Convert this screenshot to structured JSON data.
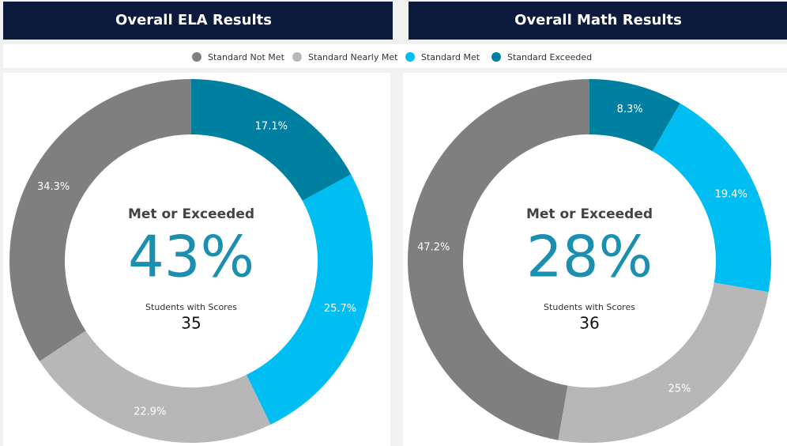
{
  "chart_data": [
    {
      "type": "pie",
      "title": "Overall ELA Results",
      "categories": [
        "Standard Not Met",
        "Standard Nearly Met",
        "Standard Met",
        "Standard Exceeded"
      ],
      "values": [
        34.3,
        22.9,
        25.7,
        17.1
      ],
      "value_labels": [
        "34.3%",
        "22.9%",
        "25.7%",
        "17.1%"
      ],
      "colors": [
        "#7f7f7f",
        "#b7b7b7",
        "#00bdf2",
        "#0080a0"
      ],
      "center_title": "Met or Exceeded",
      "center_value": 43,
      "center_value_label": "43%",
      "center_caption": "Students with Scores",
      "center_count": 35
    },
    {
      "type": "pie",
      "title": "Overall Math Results",
      "categories": [
        "Standard Not Met",
        "Standard Nearly Met",
        "Standard Met",
        "Standard Exceeded"
      ],
      "values": [
        47.2,
        25,
        19.4,
        8.3
      ],
      "value_labels": [
        "47.2%",
        "25%",
        "19.4%",
        "8.3%"
      ],
      "colors": [
        "#7f7f7f",
        "#b7b7b7",
        "#00bdf2",
        "#0080a0"
      ],
      "center_title": "Met or Exceeded",
      "center_value": 28,
      "center_value_label": "28%",
      "center_caption": "Students with Scores",
      "center_count": 36
    }
  ]
}
